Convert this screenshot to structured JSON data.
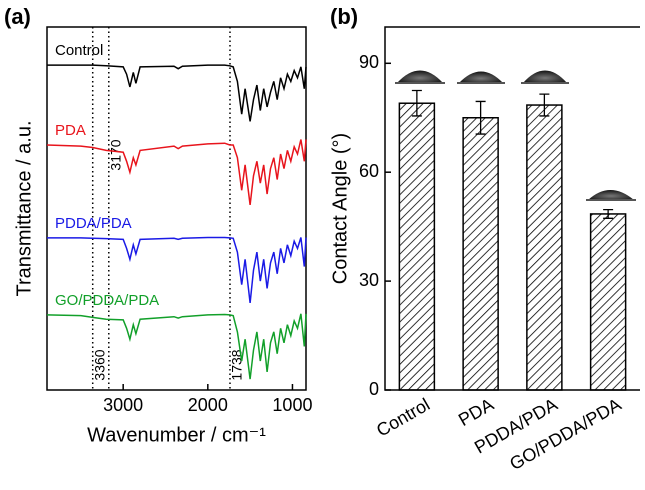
{
  "chart_data": [
    {
      "type": "line",
      "panel_label": "(a)",
      "xlabel": "Wavenumber / cm⁻¹",
      "ylabel": "Transmittance / a.u.",
      "x": [
        3900,
        3500,
        3360,
        3200,
        3000,
        2960,
        2920,
        2880,
        2850,
        2800,
        2400,
        2350,
        2300,
        2000,
        1800,
        1740,
        1700,
        1650,
        1600,
        1560,
        1500,
        1460,
        1420,
        1380,
        1340,
        1300,
        1260,
        1220,
        1180,
        1140,
        1100,
        1060,
        1020,
        980,
        940,
        900,
        860,
        840
      ],
      "series": [
        {
          "name": "Control",
          "color": "#000000",
          "values": [
            8.95,
            8.95,
            8.95,
            8.93,
            8.9,
            8.7,
            8.35,
            8.75,
            8.45,
            8.9,
            8.92,
            8.85,
            8.92,
            8.95,
            8.95,
            8.93,
            8.9,
            8.5,
            7.6,
            8.3,
            7.4,
            8.0,
            8.4,
            7.7,
            8.3,
            7.8,
            8.2,
            8.5,
            8.0,
            8.6,
            8.3,
            8.7,
            8.5,
            8.8,
            8.6,
            8.9,
            8.3,
            8.9
          ]
        },
        {
          "name": "PDA",
          "color": "#e8141c",
          "values": [
            6.75,
            6.72,
            6.68,
            6.6,
            6.55,
            6.3,
            6.0,
            6.4,
            6.2,
            6.6,
            6.72,
            6.65,
            6.72,
            6.78,
            6.8,
            6.75,
            6.75,
            6.4,
            5.5,
            6.2,
            5.1,
            5.9,
            6.3,
            5.7,
            6.2,
            5.4,
            6.1,
            6.4,
            5.8,
            6.5,
            6.1,
            6.6,
            6.3,
            6.7,
            6.5,
            6.9,
            6.3,
            6.9
          ]
        },
        {
          "name": "PDDA/PDA",
          "color": "#1a1ae6",
          "values": [
            4.19,
            4.19,
            4.18,
            4.17,
            4.15,
            3.9,
            3.6,
            4.0,
            3.75,
            4.15,
            4.18,
            4.15,
            4.18,
            4.2,
            4.2,
            4.19,
            4.18,
            3.8,
            2.9,
            3.6,
            2.4,
            3.3,
            3.8,
            3.0,
            3.6,
            2.8,
            3.5,
            3.8,
            3.2,
            3.9,
            3.5,
            4.0,
            3.7,
            4.1,
            3.9,
            4.2,
            3.4,
            4.2
          ]
        },
        {
          "name": "GO/PDDA/PDA",
          "color": "#12a02a",
          "values": [
            2.07,
            2.05,
            2.0,
            1.95,
            1.93,
            1.7,
            1.4,
            1.8,
            1.55,
            1.95,
            2.02,
            1.98,
            2.02,
            2.07,
            2.08,
            2.07,
            2.05,
            1.6,
            0.8,
            1.4,
            0.3,
            1.1,
            1.6,
            0.8,
            1.4,
            0.5,
            1.3,
            1.6,
            1.0,
            1.7,
            1.3,
            1.8,
            1.5,
            1.9,
            1.7,
            2.1,
            1.2,
            2.1
          ]
        }
      ],
      "xlim": [
        3900,
        840
      ],
      "ylim": [
        0,
        10
      ],
      "xticks": [
        3000,
        2000,
        1000
      ],
      "vlines": [
        {
          "value": 3360,
          "label": "3360"
        },
        {
          "value": 3170,
          "label": "3170"
        },
        {
          "value": 1738,
          "label": "1738"
        }
      ]
    },
    {
      "type": "bar",
      "panel_label": "(b)",
      "ylabel": "Contact Angle (°)",
      "categories": [
        "Control",
        "PDA",
        "PDDA/PDA",
        "GO/PDDA/PDA"
      ],
      "values": [
        79,
        75,
        78.5,
        48.5
      ],
      "errors": [
        3.5,
        4.5,
        3,
        1.2
      ],
      "ylim": [
        0,
        100
      ],
      "yticks": [
        0,
        30,
        60,
        90
      ],
      "color": "#000000"
    }
  ]
}
